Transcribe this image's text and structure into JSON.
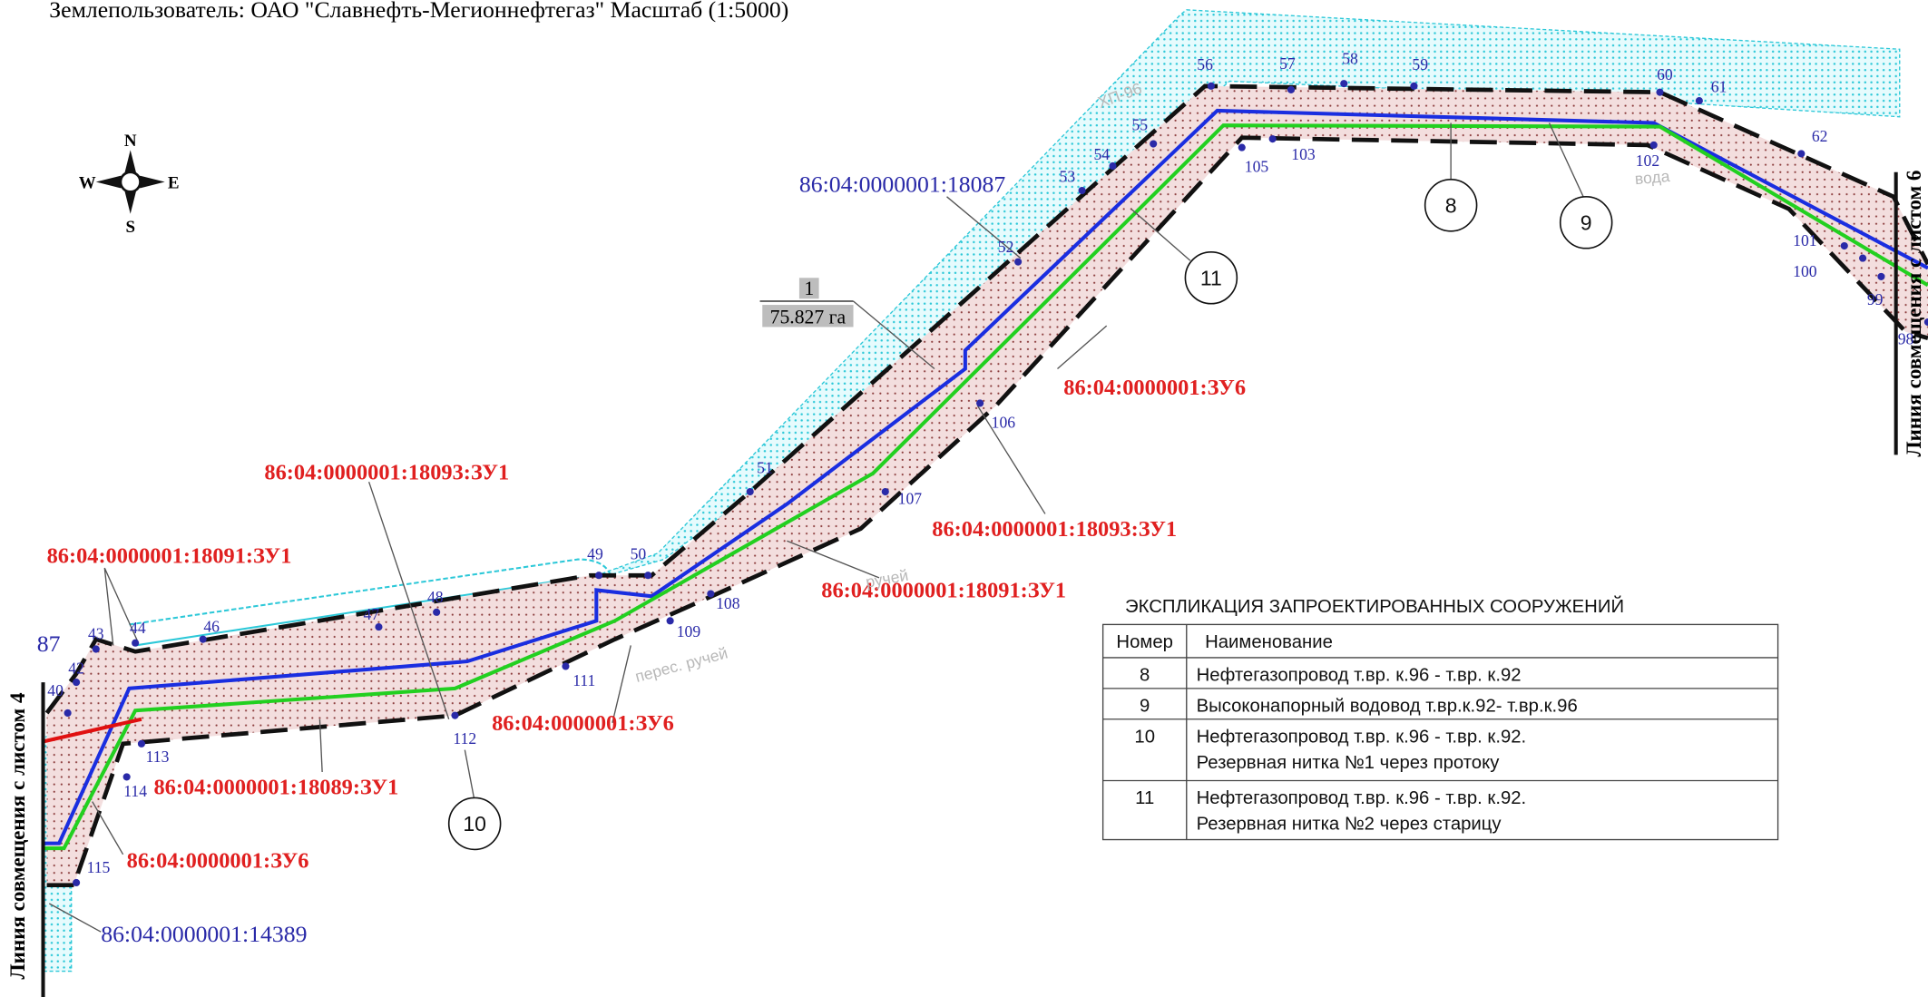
{
  "header": {
    "title": "Землепользователь: ОАО \"Славнефть-Мегионнефтегаз\" Масштаб (1:5000)"
  },
  "compass": {
    "n": "N",
    "s": "S",
    "w": "W",
    "e": "E"
  },
  "sheet_links": {
    "left": "Линия совмещения с листом 4",
    "right": "Линия совмещения с листом 6"
  },
  "area": {
    "number": "1",
    "value": "75.827 га"
  },
  "edge_label": "87",
  "points": [
    "40",
    "42",
    "43",
    "44",
    "46",
    "47",
    "48",
    "49",
    "50",
    "51",
    "52",
    "53",
    "54",
    "55",
    "56",
    "57",
    "58",
    "59",
    "60",
    "61",
    "62",
    "98",
    "99",
    "100",
    "101",
    "102",
    "103",
    "105",
    "106",
    "107",
    "108",
    "109",
    "111",
    "112",
    "113",
    "114",
    "115"
  ],
  "parcels": [
    "86:04:0000001:18091:ЗУ1",
    "86:04:0000001:18093:ЗУ1",
    "86:04:0000001:ЗУ6",
    "86:04:0000001:18089:ЗУ1",
    "86:04:0000001:ЗУ6",
    "86:04:0000001:18091:ЗУ1",
    "86:04:0000001:18093:ЗУ1",
    "86:04:0000001:ЗУ6"
  ],
  "neighbors": [
    "86:04:0000001:18087",
    "86:04:0000001:14389"
  ],
  "structures": [
    "8",
    "9",
    "11",
    "10"
  ],
  "notes": [
    "ХП-96",
    "перес. ручей",
    "ручей",
    "вода"
  ],
  "table": {
    "title": "ЭКСПЛИКАЦИЯ ЗАПРОЕКТИРОВАННЫХ СООРУЖЕНИЙ",
    "header": [
      "Номер",
      "Наименование"
    ],
    "rows": [
      {
        "number": "8",
        "name": [
          "Нефтегазопровод т.вр. к.96 - т.вр. к.92"
        ]
      },
      {
        "number": "9",
        "name": [
          "Высоконапорный водовод т.вр.к.92- т.вр.к.96"
        ]
      },
      {
        "number": "10",
        "name": [
          "Нефтегазопровод т.вр. к.96 - т.вр. к.92.",
          "Резервная нитка №1 через протоку"
        ]
      },
      {
        "number": "11",
        "name": [
          "Нефтегазопровод т.вр. к.96 - т.вр. к.92.",
          "Резервная нитка №2 через старицу"
        ]
      }
    ]
  }
}
